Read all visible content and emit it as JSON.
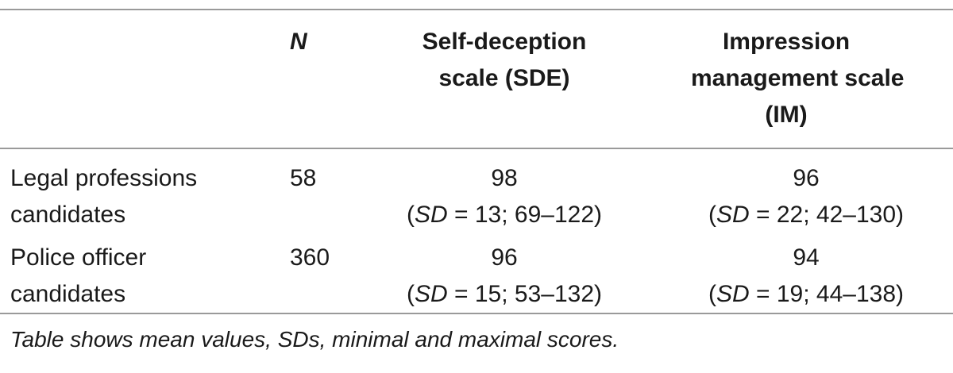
{
  "table": {
    "headers": {
      "col_n": "N",
      "col_sde_line1": "Self-deception",
      "col_sde_line2": "scale (SDE)",
      "col_im_line1": "Impression",
      "col_im_line2": "management scale",
      "col_im_line3": "(IM)"
    },
    "rows": [
      {
        "label_line1": "Legal professions",
        "label_line2": "candidates",
        "n": "58",
        "sde_mean": "98",
        "sde_sd_label": "SD",
        "sde_detail": " = 13; 69–122)",
        "im_mean": "96",
        "im_sd_label": "SD",
        "im_detail": " = 22; 42–130)"
      },
      {
        "label_line1": "Police officer",
        "label_line2": "candidates",
        "n": "360",
        "sde_mean": "96",
        "sde_sd_label": "SD",
        "sde_detail": " = 15; 53–132)",
        "im_mean": "94",
        "im_sd_label": "SD",
        "im_detail": " = 19; 44–138)"
      }
    ],
    "note": "Table shows mean values, SDs, minimal and maximal scores.",
    "open_paren": "("
  }
}
